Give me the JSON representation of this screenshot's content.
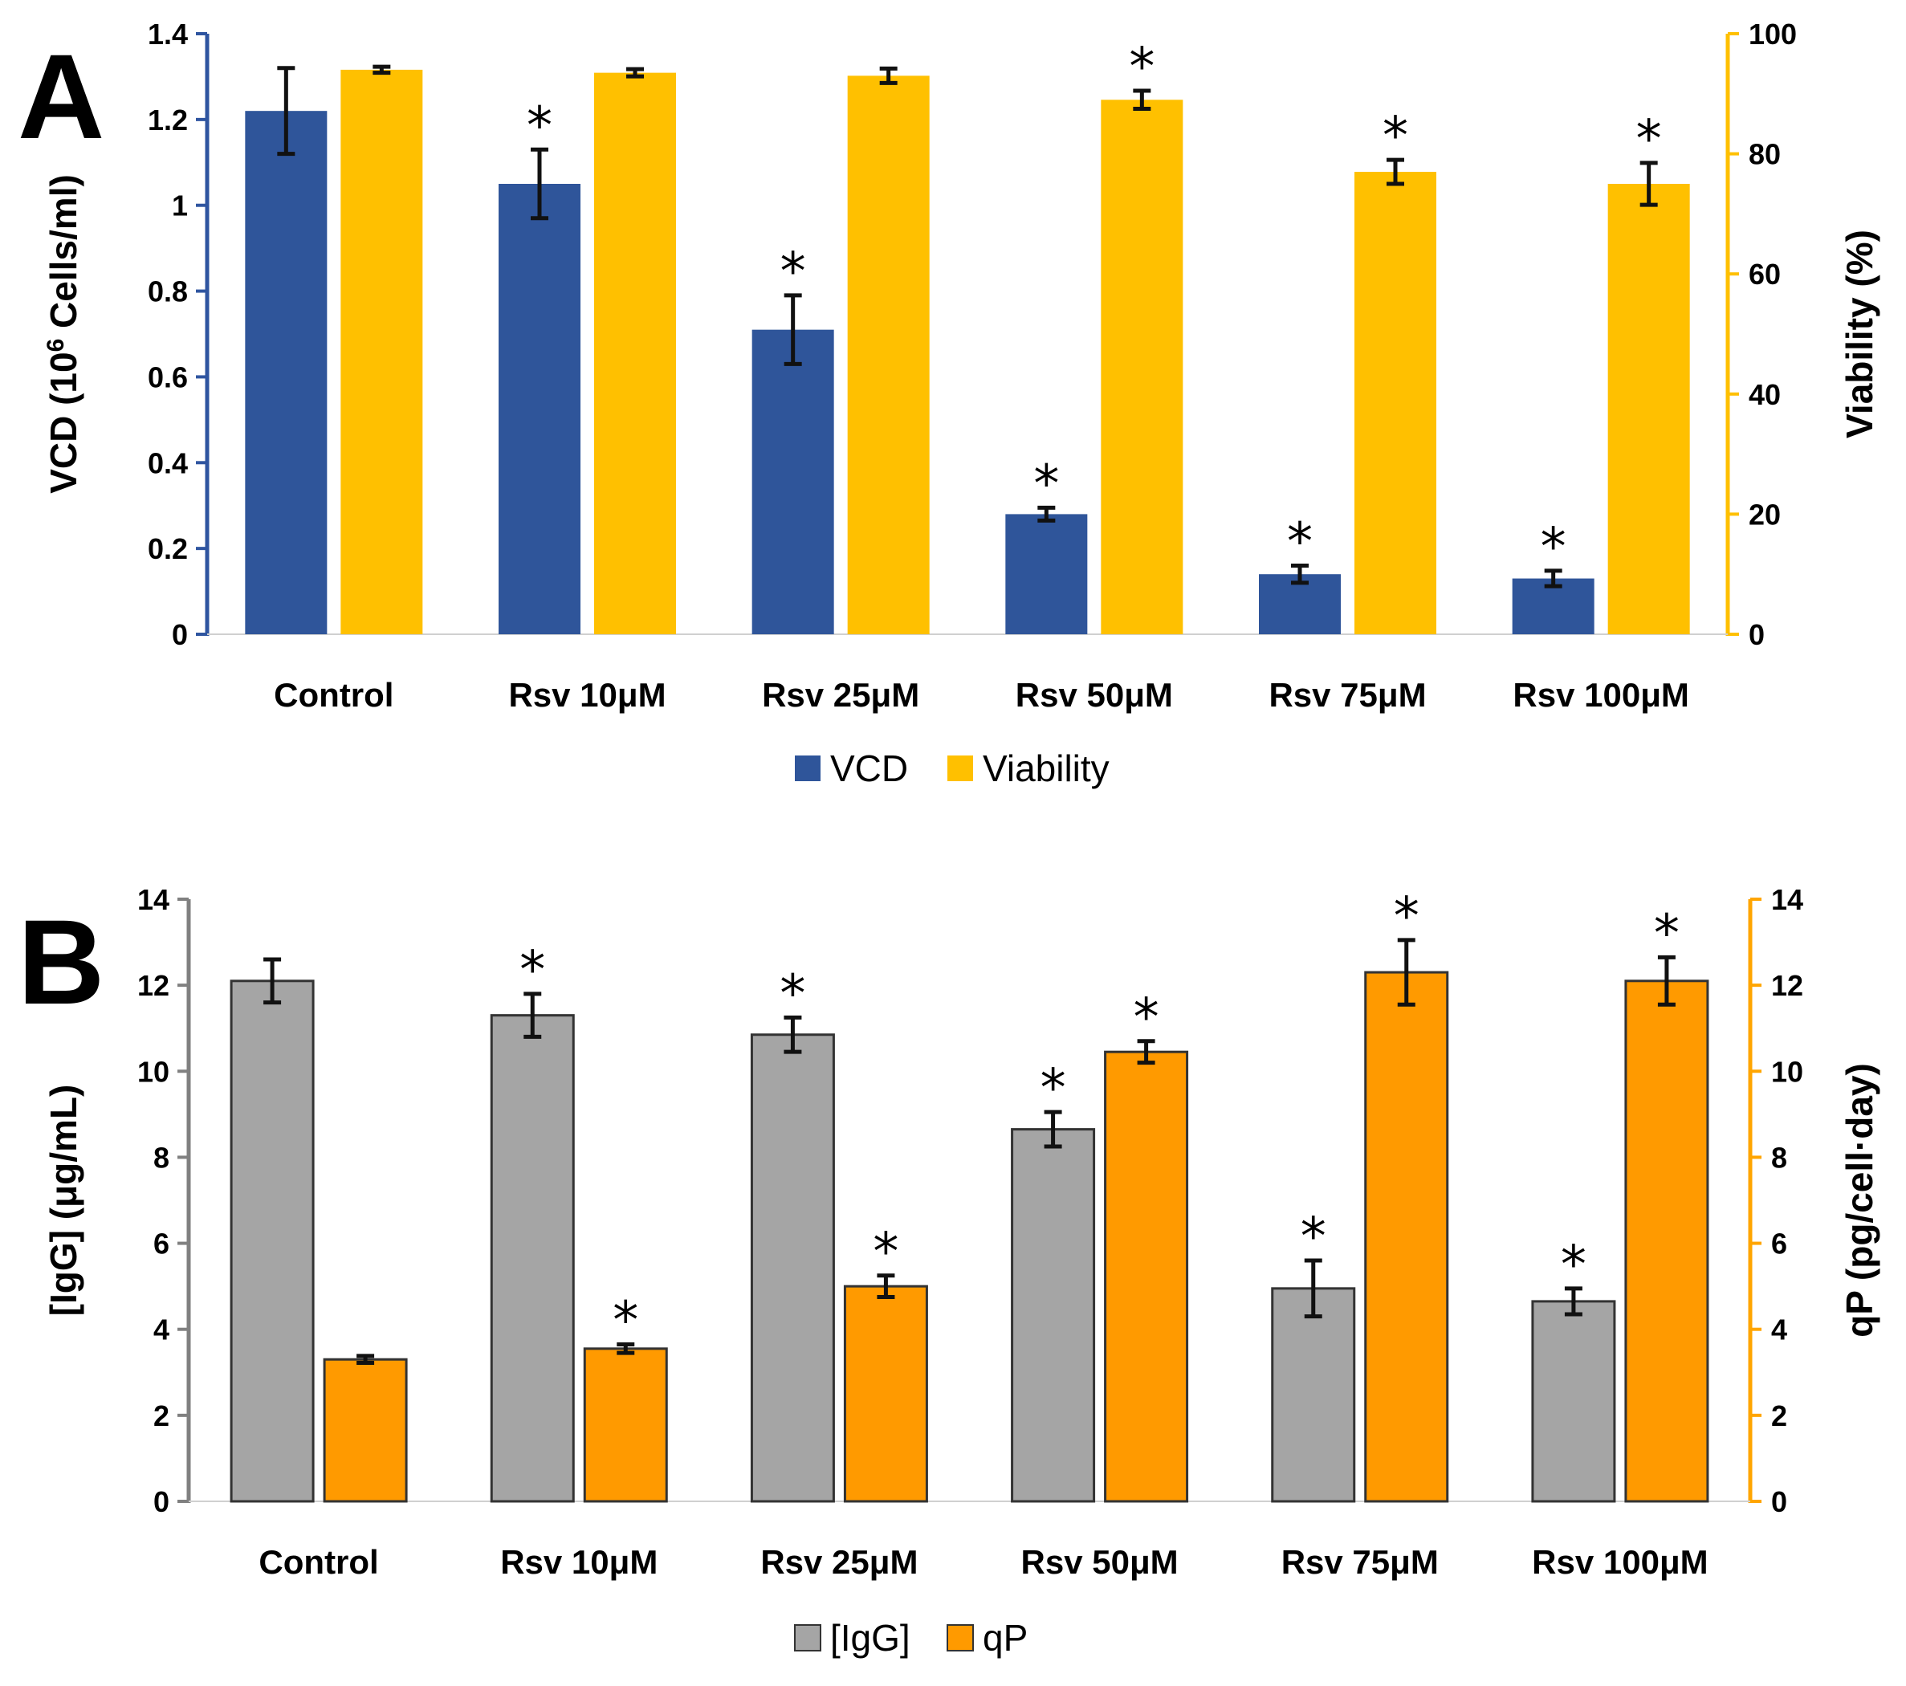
{
  "chart_data": [
    {
      "panel": "A",
      "type": "bar",
      "categories": [
        "Control",
        "Rsv 10μM",
        "Rsv 25μM",
        "Rsv 50μM",
        "Rsv 75μM",
        "Rsv 100μM"
      ],
      "ylabel_left": {
        "pre": "VCD (10",
        "sup": "6",
        "post": " Cells/ml)"
      },
      "ylabel_right": "Viability (%)",
      "y_left": {
        "min": 0,
        "max": 1.4,
        "ticks": [
          "0",
          "0.2",
          "0.4",
          "0.6",
          "0.8",
          "1",
          "1.2",
          "1.4"
        ]
      },
      "y_right": {
        "min": 0,
        "max": 100,
        "ticks": [
          "0",
          "20",
          "40",
          "60",
          "80",
          "100"
        ]
      },
      "left_axis_color": "#2F55A0",
      "right_axis_color": "#FFC000",
      "series": [
        {
          "name": "VCD",
          "axis": "left",
          "color": "#2F559A",
          "values": [
            1.22,
            1.05,
            0.71,
            0.28,
            0.14,
            0.13
          ],
          "errors": [
            0.1,
            0.08,
            0.08,
            0.015,
            0.02,
            0.018
          ],
          "significant": [
            false,
            true,
            true,
            true,
            true,
            true
          ]
        },
        {
          "name": "Viability",
          "axis": "right",
          "color": "#FFC000",
          "values": [
            94,
            93.5,
            93,
            89,
            77,
            75
          ],
          "errors": [
            0.5,
            0.6,
            1.2,
            1.5,
            2.0,
            3.5
          ],
          "significant": [
            false,
            false,
            false,
            true,
            true,
            true
          ]
        }
      ],
      "legend": [
        "VCD",
        "Viability"
      ],
      "significance_marker": "*"
    },
    {
      "panel": "B",
      "type": "bar",
      "categories": [
        "Control",
        "Rsv 10μM",
        "Rsv 25μM",
        "Rsv 50μM",
        "Rsv 75μM",
        "Rsv 100μM"
      ],
      "ylabel_left": {
        "pre": "[IgG] (μg/mL)",
        "sup": "",
        "post": ""
      },
      "ylabel_right": "qP (pg/cell·day)",
      "y_left": {
        "min": 0,
        "max": 14,
        "ticks": [
          "0",
          "2",
          "4",
          "6",
          "8",
          "10",
          "12",
          "14"
        ]
      },
      "y_right": {
        "min": 0,
        "max": 14,
        "ticks": [
          "0",
          "2",
          "4",
          "6",
          "8",
          "10",
          "12",
          "14"
        ]
      },
      "left_axis_color": "#808080",
      "right_axis_color": "#FFA500",
      "series": [
        {
          "name": "[IgG]",
          "axis": "left",
          "color": "#A5A5A5",
          "values": [
            12.1,
            11.3,
            10.85,
            8.65,
            4.95,
            4.65
          ],
          "errors": [
            0.5,
            0.5,
            0.4,
            0.4,
            0.65,
            0.3
          ],
          "significant": [
            false,
            true,
            true,
            true,
            true,
            true
          ]
        },
        {
          "name": "qP",
          "axis": "right",
          "color": "#FF9A00",
          "values": [
            3.3,
            3.55,
            5.0,
            10.45,
            12.3,
            12.1
          ],
          "errors": [
            0.08,
            0.1,
            0.25,
            0.25,
            0.75,
            0.55
          ],
          "significant": [
            false,
            true,
            true,
            true,
            true,
            true
          ]
        }
      ],
      "legend": [
        "[IgG]",
        "qP"
      ],
      "significance_marker": "*"
    }
  ]
}
